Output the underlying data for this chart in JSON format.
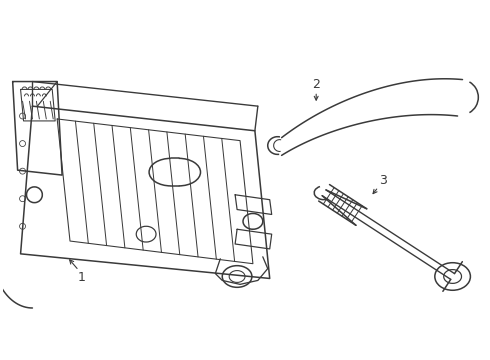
{
  "background_color": "#ffffff",
  "line_color": "#3a3a3a",
  "line_width": 1.1,
  "label_fontsize": 9,
  "figsize": [
    4.9,
    3.6
  ],
  "dpi": 100
}
